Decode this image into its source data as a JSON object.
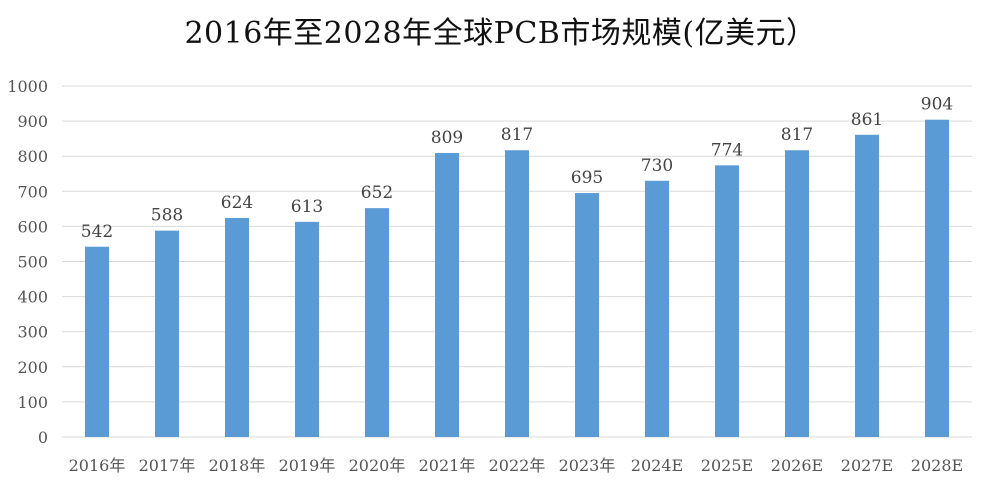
{
  "chart_data": {
    "type": "bar",
    "title": "2016年至2028年全球PCB市场规模(亿美元）",
    "categories": [
      "2016年",
      "2017年",
      "2018年",
      "2019年",
      "2020年",
      "2021年",
      "2022年",
      "2023年",
      "2024E",
      "2025E",
      "2026E",
      "2027E",
      "2028E"
    ],
    "series": [
      {
        "values": [
          542,
          588,
          624,
          613,
          652,
          809,
          817,
          695,
          730,
          774,
          817,
          861,
          904
        ]
      }
    ],
    "ylim": [
      0,
      1000
    ],
    "yticks": [
      0,
      100,
      200,
      300,
      400,
      500,
      600,
      700,
      800,
      900,
      1000
    ],
    "grid": true,
    "legend": "none",
    "data_labels": true,
    "colors": {
      "bar": "#5b9bd5",
      "grid": "#d9d9d9",
      "axis_text": "#555555"
    }
  }
}
